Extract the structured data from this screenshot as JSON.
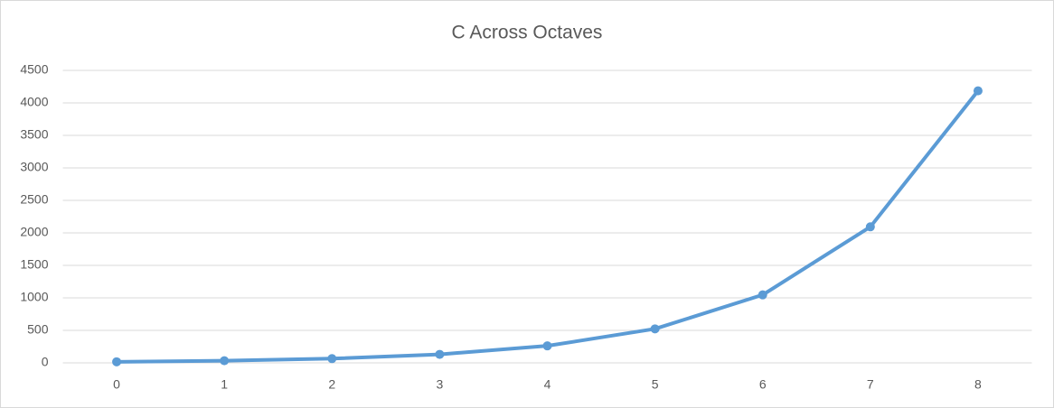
{
  "chart_data": {
    "type": "line",
    "title": "C Across Octaves",
    "categories": [
      "0",
      "1",
      "2",
      "3",
      "4",
      "5",
      "6",
      "7",
      "8"
    ],
    "values": [
      16.35,
      32.7,
      65.41,
      130.81,
      261.63,
      523.25,
      1046.5,
      2093,
      4186.01
    ],
    "color": "#5b9bd5",
    "ylim": [
      0,
      4500
    ],
    "yticks": [
      0,
      500,
      1000,
      1500,
      2000,
      2500,
      3000,
      3500,
      4000,
      4500
    ],
    "grid": true
  }
}
